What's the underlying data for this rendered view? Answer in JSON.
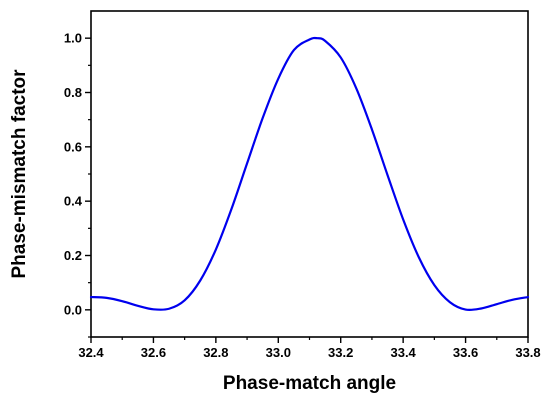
{
  "chart_data": {
    "type": "line",
    "title": "",
    "xlabel": "Phase-match angle",
    "ylabel": "Phase-mismatch factor",
    "xlim": [
      32.4,
      33.8
    ],
    "ylim": [
      -0.1,
      1.1
    ],
    "x_ticks": [
      "32.4",
      "32.6",
      "32.8",
      "33.0",
      "33.2",
      "33.4",
      "33.6",
      "33.8"
    ],
    "y_ticks": [
      "0.0",
      "0.2",
      "0.4",
      "0.6",
      "0.8",
      "1.0"
    ],
    "grid": false,
    "legend": "none",
    "series": [
      {
        "color": "#0000ee",
        "x": [
          32.4,
          32.45,
          32.5,
          32.55,
          32.6,
          32.65,
          32.7,
          32.75,
          32.8,
          32.85,
          32.9,
          32.95,
          33.0,
          33.05,
          33.1,
          33.125,
          33.15,
          33.2,
          33.25,
          33.3,
          33.35,
          33.4,
          33.45,
          33.5,
          33.55,
          33.6,
          33.65,
          33.7,
          33.75,
          33.8
        ],
        "y": [
          0.047,
          0.044,
          0.032,
          0.015,
          0.002,
          0.004,
          0.035,
          0.108,
          0.222,
          0.371,
          0.539,
          0.706,
          0.851,
          0.956,
          0.995,
          1.0,
          0.99,
          0.929,
          0.815,
          0.664,
          0.496,
          0.333,
          0.194,
          0.091,
          0.028,
          0.001,
          0.005,
          0.021,
          0.037,
          0.047
        ]
      }
    ]
  }
}
